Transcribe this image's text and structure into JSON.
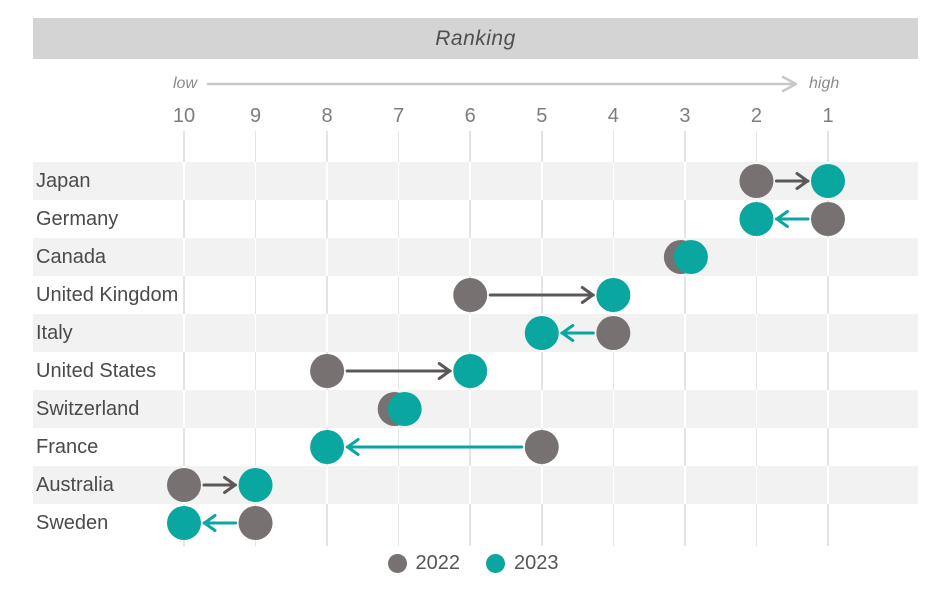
{
  "title": "Ranking",
  "axis": {
    "low_label": "low",
    "high_label": "high"
  },
  "legend": {
    "items": [
      {
        "label": "2022",
        "color_key": "dot_2022"
      },
      {
        "label": "2023",
        "color_key": "dot_2023"
      }
    ]
  },
  "colors": {
    "header_band": "#d4d4d4",
    "row_band": "#f2f2f2",
    "gridline": "#e4e4e4",
    "axis_arrow": "#c8c8c8",
    "dot_2022": "#777171",
    "dot_2023": "#0aa6a0",
    "arrow_improve": "#5c5858",
    "title_text": "#4f4f4f",
    "tick_text": "#7d7d7d",
    "label_text": "#4a4a4a",
    "direction_text": "#8a8a8a",
    "legend_text": "#555555"
  },
  "chart_data": {
    "type": "scatter",
    "subtype": "dumbbell-arrow-ranking",
    "title": "Ranking",
    "categories": [
      "Japan",
      "Germany",
      "Canada",
      "United Kingdom",
      "Italy",
      "United States",
      "Switzerland",
      "France",
      "Australia",
      "Sweden"
    ],
    "series": [
      {
        "name": "2022",
        "values": [
          2,
          1,
          3,
          6,
          4,
          8,
          7,
          5,
          10,
          9
        ]
      },
      {
        "name": "2023",
        "values": [
          1,
          2,
          3,
          4,
          5,
          6,
          7,
          8,
          9,
          10
        ]
      }
    ],
    "x_ticks": [
      10,
      9,
      8,
      7,
      6,
      5,
      4,
      3,
      2,
      1
    ],
    "x_axis": {
      "range_left_to_right": [
        10,
        1
      ],
      "reversed": true,
      "direction_low": "low",
      "direction_high": "high"
    },
    "grid": true,
    "legend_position": "bottom-center",
    "annotations": "Arrows point from 2022 rank to 2023 rank: dark-gray arrow when rank improved (moves right), teal arrow when rank declined (moves left); equal ranks shown as overlapping dots (Canada 3, Switzerland 7)."
  }
}
